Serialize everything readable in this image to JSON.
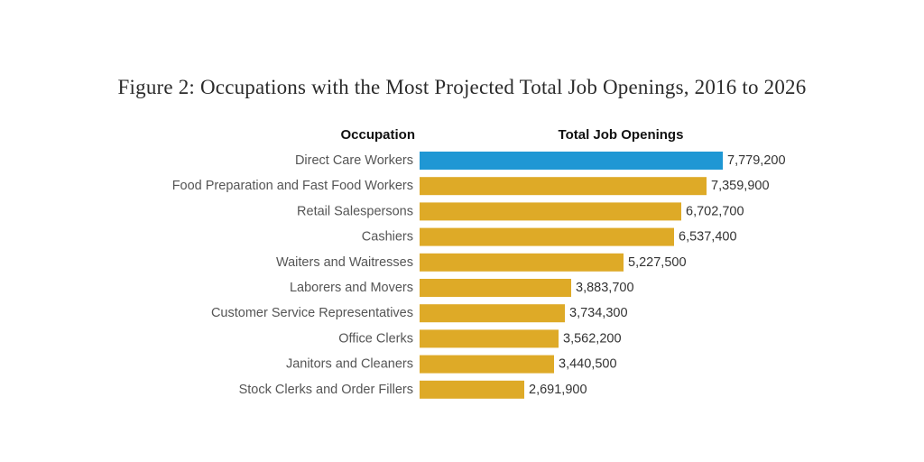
{
  "chart_data": {
    "type": "bar",
    "orientation": "horizontal",
    "title": "Figure 2: Occupations with the Most Projected Total Job Openings, 2016 to 2026",
    "category_header": "Occupation",
    "value_header": "Total Job Openings",
    "categories": [
      "Direct Care Workers",
      "Food Preparation and Fast Food Workers",
      "Retail Salespersons",
      "Cashiers",
      "Waiters and Waitresses",
      "Laborers and Movers",
      "Customer Service Representatives",
      "Office Clerks",
      "Janitors and Cleaners",
      "Stock Clerks and Order Fillers"
    ],
    "values": [
      7779200,
      7359900,
      6702700,
      6537400,
      5227500,
      3883700,
      3734300,
      3562200,
      3440500,
      2691900
    ],
    "value_labels": [
      "7,779,200",
      "7,359,900",
      "6,702,700",
      "6,537,400",
      "5,227,500",
      "3,883,700",
      "3,734,300",
      "3,562,200",
      "3,440,500",
      "2,691,900"
    ],
    "highlight_index": 0,
    "colors": {
      "highlight": "#1f97d4",
      "default": "#deaa27"
    },
    "xlim": [
      0,
      7779200
    ],
    "grid": false,
    "legend": "none"
  }
}
